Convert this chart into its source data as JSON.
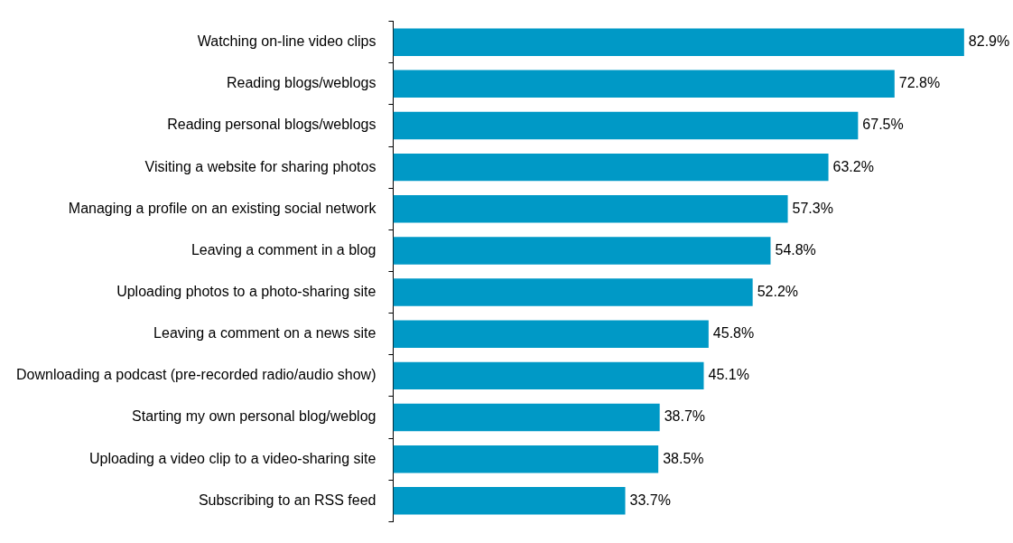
{
  "chart_data": {
    "type": "bar",
    "orientation": "horizontal",
    "categories": [
      "Watching on-line video clips",
      "Reading blogs/weblogs",
      "Reading personal blogs/weblogs",
      "Visiting a website for sharing photos",
      "Managing a profile on an existing social network",
      "Leaving a comment in a blog",
      "Uploading photos to a photo-sharing site",
      "Leaving a comment on a news site",
      "Downloading a podcast (pre-recorded radio/audio show)",
      "Starting my own personal blog/weblog",
      "Uploading a video clip to a video-sharing site",
      "Subscribing to an RSS feed"
    ],
    "values": [
      82.9,
      72.8,
      67.5,
      63.2,
      57.3,
      54.8,
      52.2,
      45.8,
      45.1,
      38.7,
      38.5,
      33.7
    ],
    "value_labels": [
      "82.9%",
      "72.8%",
      "67.5%",
      "63.2%",
      "57.3%",
      "54.8%",
      "52.2%",
      "45.8%",
      "45.1%",
      "38.7%",
      "38.5%",
      "33.7%"
    ],
    "color": "#0099c6",
    "tick_labels": "y",
    "grid": false,
    "legend": false
  }
}
